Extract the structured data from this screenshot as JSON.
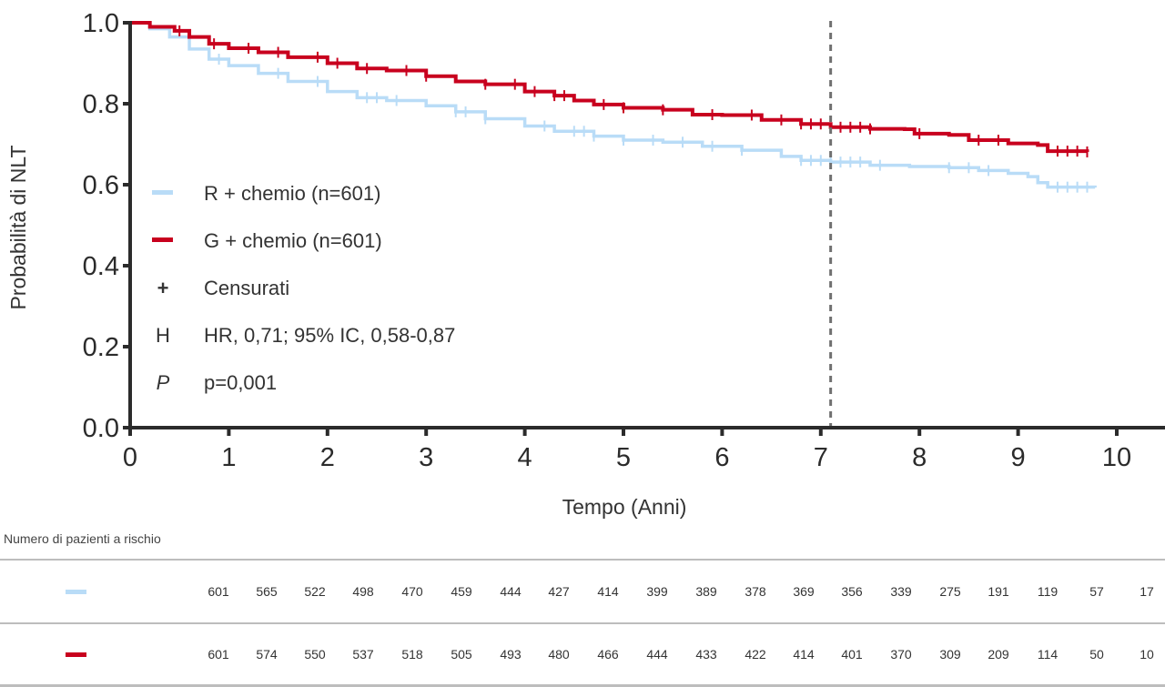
{
  "colors": {
    "r_chemio": "#b9dcf7",
    "g_chemio": "#c8001e",
    "axis": "#2b2b2b",
    "reference_line": "#707070"
  },
  "chart_data": {
    "type": "line",
    "subtype": "kaplan-meier",
    "title": "",
    "xlabel": "Tempo (Anni)",
    "ylabel": "Probabilità di NLT",
    "xlim": [
      0,
      10
    ],
    "ylim": [
      0.0,
      1.0
    ],
    "x_ticks": [
      0,
      1,
      2,
      3,
      4,
      5,
      6,
      7,
      8,
      9,
      10
    ],
    "y_ticks": [
      0.0,
      0.2,
      0.4,
      0.6,
      0.8,
      1.0
    ],
    "y_tick_labels": [
      "0.0",
      "0.2",
      "0.4",
      "0.6",
      "0.8",
      "1.0"
    ],
    "grid": false,
    "reference_line_x": 7.1,
    "series": [
      {
        "name": "R + chemio (n=601)",
        "key": "r_chemio",
        "points": [
          [
            0,
            1.0
          ],
          [
            0.2,
            0.985
          ],
          [
            0.4,
            0.965
          ],
          [
            0.6,
            0.935
          ],
          [
            0.8,
            0.91
          ],
          [
            1.0,
            0.894
          ],
          [
            1.3,
            0.875
          ],
          [
            1.6,
            0.855
          ],
          [
            2.0,
            0.83
          ],
          [
            2.3,
            0.815
          ],
          [
            2.6,
            0.808
          ],
          [
            3.0,
            0.795
          ],
          [
            3.3,
            0.78
          ],
          [
            3.6,
            0.763
          ],
          [
            4.0,
            0.745
          ],
          [
            4.3,
            0.732
          ],
          [
            4.7,
            0.72
          ],
          [
            5.0,
            0.71
          ],
          [
            5.4,
            0.705
          ],
          [
            5.8,
            0.695
          ],
          [
            6.2,
            0.685
          ],
          [
            6.6,
            0.67
          ],
          [
            6.8,
            0.66
          ],
          [
            7.1,
            0.656
          ],
          [
            7.5,
            0.648
          ],
          [
            7.9,
            0.645
          ],
          [
            8.3,
            0.642
          ],
          [
            8.6,
            0.635
          ],
          [
            8.9,
            0.628
          ],
          [
            9.1,
            0.62
          ],
          [
            9.2,
            0.605
          ],
          [
            9.3,
            0.594
          ],
          [
            9.78,
            0.593
          ]
        ],
        "censor_times": [
          0.9,
          1.5,
          1.9,
          2.4,
          2.5,
          2.7,
          3.3,
          3.4,
          3.6,
          4.2,
          4.5,
          4.6,
          4.7,
          5.0,
          5.3,
          5.6,
          5.9,
          6.2,
          6.8,
          6.9,
          7.0,
          7.1,
          7.2,
          7.3,
          7.4,
          7.6,
          8.3,
          8.5,
          8.7,
          9.4,
          9.5,
          9.6,
          9.7
        ]
      },
      {
        "name": "G + chemio (n=601)",
        "key": "g_chemio",
        "points": [
          [
            0,
            1.0
          ],
          [
            0.2,
            0.99
          ],
          [
            0.45,
            0.98
          ],
          [
            0.6,
            0.965
          ],
          [
            0.8,
            0.948
          ],
          [
            1.0,
            0.937
          ],
          [
            1.3,
            0.927
          ],
          [
            1.6,
            0.915
          ],
          [
            2.0,
            0.9
          ],
          [
            2.3,
            0.887
          ],
          [
            2.6,
            0.882
          ],
          [
            3.0,
            0.868
          ],
          [
            3.3,
            0.855
          ],
          [
            3.6,
            0.848
          ],
          [
            4.0,
            0.83
          ],
          [
            4.3,
            0.82
          ],
          [
            4.5,
            0.808
          ],
          [
            4.7,
            0.798
          ],
          [
            5.0,
            0.79
          ],
          [
            5.4,
            0.785
          ],
          [
            5.7,
            0.773
          ],
          [
            6.0,
            0.772
          ],
          [
            6.4,
            0.76
          ],
          [
            6.8,
            0.75
          ],
          [
            7.1,
            0.742
          ],
          [
            7.5,
            0.738
          ],
          [
            7.85,
            0.737
          ],
          [
            7.95,
            0.726
          ],
          [
            8.3,
            0.723
          ],
          [
            8.5,
            0.71
          ],
          [
            8.9,
            0.702
          ],
          [
            9.2,
            0.698
          ],
          [
            9.3,
            0.683
          ],
          [
            9.7,
            0.681
          ]
        ],
        "censor_times": [
          0.5,
          0.85,
          1.2,
          1.5,
          1.9,
          2.1,
          2.4,
          2.8,
          3.0,
          3.6,
          3.9,
          4.1,
          4.3,
          4.4,
          4.8,
          5.0,
          5.4,
          5.9,
          6.3,
          6.6,
          6.8,
          6.9,
          7.0,
          7.2,
          7.3,
          7.4,
          7.5,
          8.0,
          8.6,
          8.8,
          9.4,
          9.5,
          9.6,
          9.7
        ]
      }
    ],
    "legend": {
      "position": "center-left",
      "items": [
        {
          "symbol": "line",
          "key": "r_chemio",
          "label": "R + chemio (n=601)"
        },
        {
          "symbol": "line",
          "key": "g_chemio",
          "label": "G + chemio (n=601)"
        },
        {
          "symbol": "+",
          "label": "Censurati"
        },
        {
          "symbol": "H",
          "label": "HR, 0,71; 95% IC, 0,58-0,87"
        },
        {
          "symbol": "P",
          "label": "p=0,001"
        }
      ]
    },
    "risk_table": {
      "title": "Numero di pazienti a rischio",
      "time_points": [
        0,
        0.5,
        1,
        1.5,
        2,
        2.5,
        3,
        3.5,
        4,
        4.5,
        5,
        5.5,
        6,
        6.5,
        7,
        7.5,
        8,
        8.5,
        9,
        9.5
      ],
      "rows": [
        {
          "key": "r_chemio",
          "values": [
            601,
            565,
            522,
            498,
            470,
            459,
            444,
            427,
            414,
            399,
            389,
            378,
            369,
            356,
            339,
            275,
            191,
            119,
            57,
            17
          ]
        },
        {
          "key": "g_chemio",
          "values": [
            601,
            574,
            550,
            537,
            518,
            505,
            493,
            480,
            466,
            444,
            433,
            422,
            414,
            401,
            370,
            309,
            209,
            114,
            50,
            10
          ]
        }
      ]
    }
  }
}
